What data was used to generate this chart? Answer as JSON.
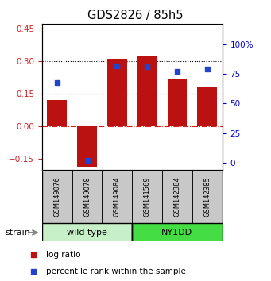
{
  "title": "GDS2826 / 85h5",
  "samples": [
    "GSM149076",
    "GSM149078",
    "GSM149084",
    "GSM141569",
    "GSM142384",
    "GSM142385"
  ],
  "log_ratios": [
    0.12,
    -0.19,
    0.31,
    0.32,
    0.22,
    0.18
  ],
  "percentile_ranks": [
    68,
    2,
    82,
    81,
    77,
    79
  ],
  "group_configs": [
    {
      "label": "wild type",
      "start": 0,
      "end": 3,
      "color": "#c8f0c8"
    },
    {
      "label": "NY1DD",
      "start": 3,
      "end": 6,
      "color": "#44dd44"
    }
  ],
  "bar_color": "#bb1111",
  "dot_color": "#2244cc",
  "ylim_left": [
    -0.2,
    0.47
  ],
  "ylim_right": [
    -6.25,
    117.5
  ],
  "yticks_left": [
    -0.15,
    0.0,
    0.15,
    0.3,
    0.45
  ],
  "yticks_right": [
    0,
    25,
    50,
    75,
    100
  ],
  "hlines": [
    0.0,
    0.15,
    0.3
  ],
  "hline_styles": [
    "dashdot",
    "dotted",
    "dotted"
  ],
  "hline_colors": [
    "#cc2222",
    "#000000",
    "#000000"
  ],
  "legend_items": [
    {
      "label": "log ratio",
      "color": "#bb1111"
    },
    {
      "label": "percentile rank within the sample",
      "color": "#2244cc"
    }
  ],
  "background_color": "#ffffff",
  "tick_label_color_left": "#cc2222",
  "tick_label_color_right": "#0000cc",
  "sample_box_color": "#c8c8c8",
  "strain_label": "strain"
}
